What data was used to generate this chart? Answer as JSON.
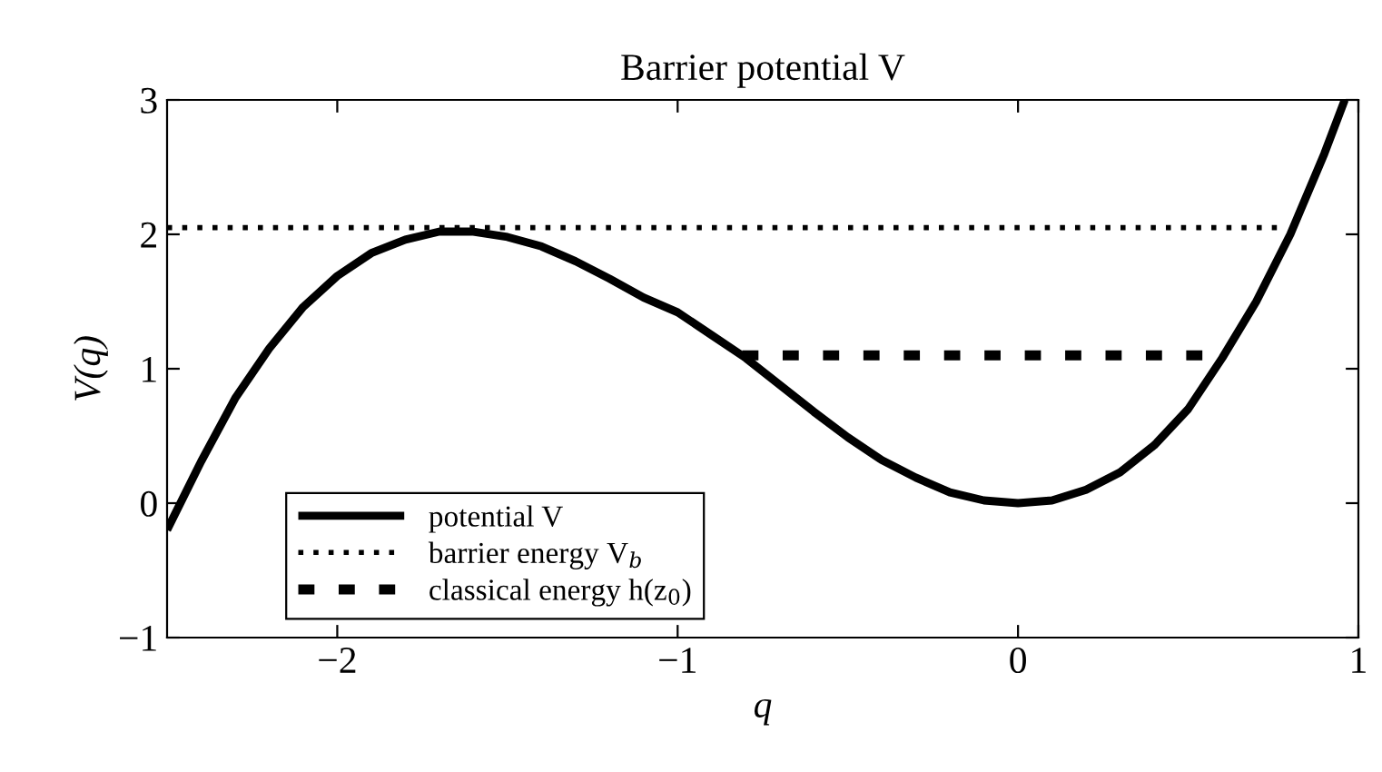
{
  "chart_data": {
    "type": "line",
    "title": "Barrier potential V",
    "xlabel": "q",
    "ylabel": "V(q)",
    "xlim": [
      -2.5,
      1
    ],
    "ylim": [
      -1,
      3
    ],
    "xticks": [
      {
        "value": -2,
        "label": "−2"
      },
      {
        "value": -1,
        "label": "−1"
      },
      0,
      1
    ],
    "yticks": [
      {
        "value": -1,
        "label": "−1"
      },
      0,
      1,
      2,
      3
    ],
    "grid": false,
    "legend": "bottom left",
    "marker": "none",
    "series": [
      {
        "name": "potential V",
        "color": "#000000",
        "line_style": "solid",
        "x": [
          -2.5,
          -2.4,
          -2.3,
          -2.2,
          -2.1,
          -2.0,
          -1.9,
          -1.8,
          -1.7,
          -1.6,
          -1.5,
          -1.4,
          -1.3,
          -1.2,
          -1.1,
          -1.0,
          -0.9,
          -0.8,
          -0.7,
          -0.6,
          -0.5,
          -0.4,
          -0.3,
          -0.2,
          -0.1,
          0,
          0.1,
          0.2,
          0.3,
          0.4,
          0.5,
          0.6,
          0.7,
          0.8,
          0.9,
          0.96
        ],
        "values": [
          -0.2,
          0.31,
          0.78,
          1.15,
          1.46,
          1.69,
          1.86,
          1.96,
          2.02,
          2.02,
          1.98,
          1.91,
          1.8,
          1.67,
          1.53,
          1.42,
          1.25,
          1.08,
          0.88,
          0.68,
          0.49,
          0.32,
          0.19,
          0.08,
          0.02,
          0,
          0.02,
          0.1,
          0.23,
          0.43,
          0.7,
          1.08,
          1.5,
          2.0,
          2.6,
          3.0
        ]
      },
      {
        "name": "barrier energy V$_{b}$",
        "color": "#000000",
        "line_style": "dotted",
        "x": [
          -2.5,
          0.79
        ],
        "values": [
          2.05,
          2.05
        ]
      },
      {
        "name": "classical energy h(z$_{0}$)",
        "color": "#000000",
        "line_style": "dashed",
        "x": [
          -0.81,
          0.6
        ],
        "values": [
          1.1,
          1.1
        ]
      }
    ]
  }
}
